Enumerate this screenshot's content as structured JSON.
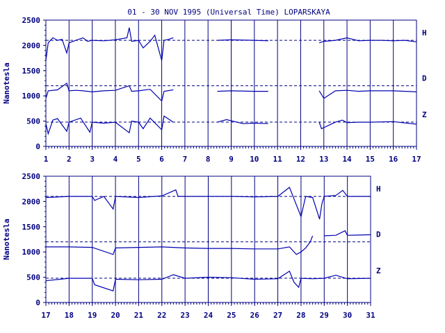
{
  "title": "01 - 30 NOV 1995 (Universal Time) LOPARSKAYA",
  "colors": {
    "ink": "#000080",
    "trace": "#0000b0",
    "background": "#ffffff"
  },
  "chart_data": [
    {
      "type": "line",
      "ylabel": "Nanotesla",
      "ylim": [
        0,
        2500
      ],
      "yticks": [
        0,
        500,
        1000,
        1500,
        2000,
        2500
      ],
      "xlim": [
        1,
        17
      ],
      "xticks": [
        1,
        2,
        3,
        4,
        5,
        6,
        7,
        8,
        9,
        10,
        11,
        12,
        13,
        14,
        15,
        16,
        17
      ],
      "grid": "vertical lines at each day",
      "reference_lines": [
        {
          "label": "H",
          "value": 2100
        },
        {
          "label": "D",
          "value": 1200
        },
        {
          "label": "Z",
          "value": 480
        }
      ],
      "series": [
        {
          "name": "H",
          "x": [
            1,
            1.1,
            1.3,
            1.5,
            1.7,
            1.9,
            2.0,
            2.3,
            2.6,
            2.8,
            3.0,
            3.5,
            4.0,
            4.5,
            4.6,
            4.7,
            5.0,
            5.2,
            5.5,
            5.7,
            6.0,
            6.1,
            6.3,
            6.5,
            null,
            8.4,
            9.0,
            10.0,
            10.6,
            null,
            12.8,
            13.0,
            13.5,
            14.0,
            14.5,
            15.0,
            15.5,
            16.0,
            16.5,
            17.0
          ],
          "y": [
            1700,
            2050,
            2150,
            2100,
            2120,
            1850,
            2050,
            2100,
            2150,
            2080,
            2100,
            2090,
            2110,
            2150,
            2350,
            2080,
            2100,
            1950,
            2080,
            2200,
            1700,
            2100,
            2120,
            2150,
            null,
            2100,
            2110,
            2100,
            2090,
            null,
            2050,
            2080,
            2100,
            2150,
            2090,
            2100,
            2100,
            2090,
            2100,
            2070
          ]
        },
        {
          "name": "D",
          "x": [
            1,
            1.1,
            1.5,
            1.9,
            2.0,
            2.3,
            2.6,
            3.0,
            3.5,
            4.0,
            4.6,
            4.7,
            5.0,
            5.5,
            6.0,
            6.1,
            6.5,
            null,
            8.4,
            9.0,
            10.0,
            10.6,
            null,
            12.8,
            13.0,
            13.5,
            14.0,
            14.5,
            15.0,
            16.0,
            17.0
          ],
          "y": [
            950,
            1100,
            1120,
            1250,
            1100,
            1110,
            1100,
            1080,
            1100,
            1110,
            1200,
            1090,
            1100,
            1130,
            900,
            1090,
            1120,
            null,
            1090,
            1100,
            1090,
            1090,
            null,
            1100,
            950,
            1100,
            1110,
            1090,
            1100,
            1100,
            1080
          ]
        },
        {
          "name": "Z",
          "x": [
            1,
            1.1,
            1.3,
            1.5,
            1.9,
            2.0,
            2.5,
            2.9,
            3.0,
            3.5,
            4.0,
            4.6,
            4.7,
            5.0,
            5.2,
            5.5,
            6.0,
            6.1,
            6.5,
            null,
            8.4,
            8.8,
            9.5,
            10.0,
            10.6,
            null,
            12.8,
            12.9,
            13.5,
            13.8,
            14.0,
            14.5,
            15.0,
            16.0,
            17.0
          ],
          "y": [
            450,
            250,
            520,
            550,
            300,
            480,
            560,
            280,
            480,
            460,
            480,
            270,
            500,
            480,
            350,
            560,
            330,
            600,
            480,
            null,
            480,
            530,
            450,
            460,
            450,
            null,
            480,
            350,
            480,
            520,
            470,
            480,
            480,
            490,
            440
          ]
        }
      ]
    },
    {
      "type": "line",
      "ylabel": "Nanotesla",
      "ylim": [
        0,
        2500
      ],
      "yticks": [
        0,
        500,
        1000,
        1500,
        2000,
        2500
      ],
      "xlim": [
        17,
        31
      ],
      "xticks": [
        17,
        18,
        19,
        20,
        21,
        22,
        23,
        24,
        25,
        26,
        27,
        28,
        29,
        30,
        31
      ],
      "grid": "vertical lines at each day",
      "reference_lines": [
        {
          "label": "H",
          "value": 2100
        },
        {
          "label": "D",
          "value": 1200
        },
        {
          "label": "Z",
          "value": 480
        }
      ],
      "series": [
        {
          "name": "H",
          "x": [
            17,
            18,
            19,
            19.1,
            19.5,
            19.9,
            20.0,
            21,
            22,
            22.6,
            22.7,
            23,
            24,
            25,
            26,
            27,
            27.5,
            27.7,
            28.0,
            28.2,
            28.5,
            28.8,
            28.9,
            29.0,
            29.5,
            29.8,
            30,
            31
          ],
          "y": [
            2080,
            2100,
            2100,
            2020,
            2100,
            1850,
            2100,
            2080,
            2110,
            2230,
            2100,
            2100,
            2100,
            2100,
            2090,
            2100,
            2280,
            2050,
            1700,
            2100,
            2080,
            1650,
            1950,
            2100,
            2120,
            2220,
            2100,
            2100
          ]
        },
        {
          "name": "D",
          "x": [
            17,
            18,
            19,
            19.9,
            20.0,
            21,
            22,
            23,
            24,
            25,
            26,
            27,
            27.5,
            27.8,
            28.0,
            28.2,
            28.4,
            28.5,
            null,
            29.0,
            29.5,
            29.9,
            30,
            31
          ],
          "y": [
            1100,
            1100,
            1090,
            950,
            1080,
            1090,
            1100,
            1080,
            1070,
            1070,
            1060,
            1060,
            1100,
            950,
            1000,
            1080,
            1200,
            1320,
            null,
            1320,
            1330,
            1420,
            1330,
            1340
          ]
        },
        {
          "name": "Z",
          "x": [
            17,
            18,
            19,
            19.1,
            19.9,
            20.0,
            21,
            22,
            22.5,
            23,
            24,
            25,
            26,
            27,
            27.5,
            27.7,
            27.9,
            28.0,
            28.5,
            29,
            29.5,
            30,
            31
          ],
          "y": [
            430,
            480,
            480,
            350,
            230,
            460,
            450,
            460,
            550,
            480,
            500,
            490,
            460,
            470,
            620,
            400,
            300,
            480,
            470,
            480,
            540,
            470,
            480
          ]
        }
      ]
    }
  ]
}
